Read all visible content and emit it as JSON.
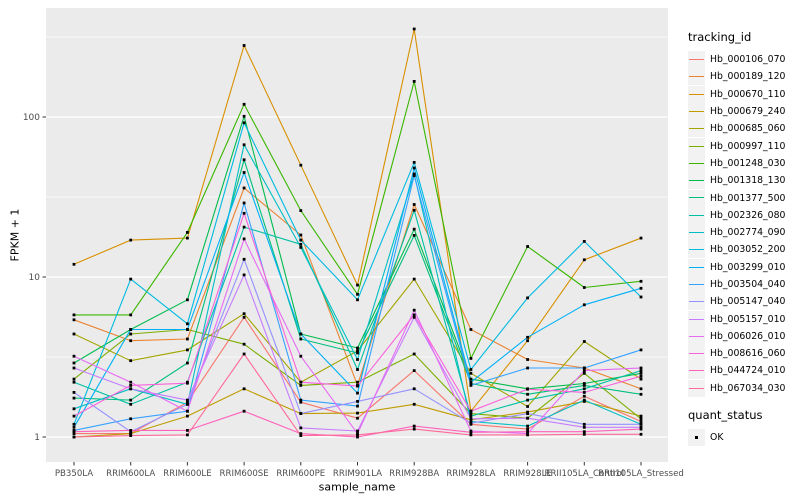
{
  "figure": {
    "background": "#FFFFFF",
    "panel_background": "#EBEBEB",
    "grid_color": "#FFFFFF",
    "axis_text_color": "#4D4D4D",
    "tick_color": "#333333",
    "point_color": "#000000",
    "legend_key_background": "#F2F2F2"
  },
  "chart_data": {
    "type": "line",
    "title": "",
    "xlabel": "sample_name",
    "ylabel": "FPKM + 1",
    "y_scale": "log10",
    "y_ticks": [
      1,
      10,
      100
    ],
    "y_minor_ticks": [
      3.1623,
      31.623,
      316.23
    ],
    "ylim": [
      0.69,
      460
    ],
    "grid": true,
    "legend_position": "right",
    "point_shape": "square",
    "categories": [
      "PB350LA",
      "RRIM600LA",
      "RRIM600LE",
      "RRIM600SE",
      "RRIM600PE",
      "RRIM901LA",
      "RRIM928BA",
      "RRIM928LA",
      "RRIM928LE",
      "RRII105LA_Control",
      "RRII105LA_Stressed"
    ],
    "series": [
      {
        "name": "Hb_000106_070",
        "color": "#F8766D",
        "values": [
          1.05,
          1.05,
          1.65,
          5.6,
          1.65,
          1.31,
          2.6,
          1.2,
          1.12,
          1.8,
          1.25
        ]
      },
      {
        "name": "Hb_000189_120",
        "color": "#EA8331",
        "values": [
          5.4,
          4.0,
          4.1,
          36,
          18.3,
          2.1,
          28.4,
          4.7,
          3.05,
          2.7,
          2.0
        ]
      },
      {
        "name": "Hb_000670_110",
        "color": "#D89000",
        "values": [
          12,
          17,
          17.5,
          280,
          50,
          8.9,
          355,
          1.45,
          4.0,
          12.8,
          17.5
        ]
      },
      {
        "name": "Hb_000679_240",
        "color": "#C09B00",
        "values": [
          1.0,
          1.05,
          1.35,
          2.0,
          1.4,
          1.41,
          1.6,
          1.28,
          1.43,
          1.67,
          1.35
        ]
      },
      {
        "name": "Hb_000685_060",
        "color": "#A3A500",
        "values": [
          4.4,
          3.0,
          3.5,
          5.9,
          2.2,
          3.45,
          9.7,
          2.5,
          1.55,
          3.95,
          2.3
        ]
      },
      {
        "name": "Hb_000997_110",
        "color": "#7CAE00",
        "values": [
          2.3,
          4.4,
          4.7,
          3.8,
          2.1,
          2.2,
          3.3,
          1.4,
          1.31,
          2.5,
          1.3
        ]
      },
      {
        "name": "Hb_001248_030",
        "color": "#39B600",
        "values": [
          5.8,
          5.8,
          19,
          120,
          26,
          7.8,
          167,
          3.1,
          15.5,
          8.6,
          9.4
        ]
      },
      {
        "name": "Hb_001318_130",
        "color": "#00BB4E",
        "values": [
          2.9,
          4.7,
          7.2,
          101,
          4.4,
          3.6,
          19.9,
          2.3,
          2.0,
          2.16,
          2.5
        ]
      },
      {
        "name": "Hb_001377_500",
        "color": "#00BF7D",
        "values": [
          1.75,
          1.7,
          2.9,
          54,
          4.1,
          3.35,
          18.2,
          2.16,
          1.85,
          2.1,
          1.85
        ]
      },
      {
        "name": "Hb_002326_080",
        "color": "#00C1A3",
        "values": [
          2.2,
          1.6,
          2.2,
          20.5,
          16,
          2.64,
          26.1,
          1.35,
          1.7,
          2.0,
          2.6
        ]
      },
      {
        "name": "Hb_002774_090",
        "color": "#00BFC4",
        "values": [
          1.5,
          2.0,
          1.6,
          67,
          15.3,
          3.05,
          44,
          1.25,
          1.17,
          1.7,
          1.2
        ]
      },
      {
        "name": "Hb_003052_200",
        "color": "#00BAE0",
        "values": [
          1.2,
          9.7,
          5.1,
          92,
          17,
          7.2,
          52,
          2.64,
          7.4,
          16.7,
          7.5
        ]
      },
      {
        "name": "Hb_003299_010",
        "color": "#00B0F6",
        "values": [
          1.15,
          4.7,
          4.7,
          45,
          4.4,
          1.88,
          48,
          2.2,
          4.2,
          6.7,
          8.5
        ]
      },
      {
        "name": "Hb_003504_040",
        "color": "#35A2FF",
        "values": [
          1.1,
          1.3,
          1.45,
          29,
          1.7,
          1.56,
          43,
          2.1,
          2.7,
          2.7,
          3.5
        ]
      },
      {
        "name": "Hb_005147_040",
        "color": "#9590FF",
        "values": [
          1.9,
          1.08,
          1.6,
          12.9,
          1.4,
          1.67,
          2.0,
          1.22,
          1.4,
          1.2,
          1.2
        ]
      },
      {
        "name": "Hb_005157_010",
        "color": "#C77CFF",
        "values": [
          2.7,
          2.0,
          1.7,
          10.3,
          1.14,
          1.09,
          5.6,
          1.3,
          1.31,
          1.15,
          1.15
        ]
      },
      {
        "name": "Hb_006026_010",
        "color": "#E76BF3",
        "values": [
          3.2,
          2.2,
          1.45,
          17.3,
          3.2,
          1.05,
          6.2,
          1.09,
          1.05,
          2.6,
          2.7
        ]
      },
      {
        "name": "Hb_008616_060",
        "color": "#FA62DB",
        "values": [
          1.35,
          2.1,
          2.17,
          25,
          2.2,
          2.08,
          5.8,
          1.45,
          1.99,
          1.9,
          2.4
        ]
      },
      {
        "name": "Hb_044724_010",
        "color": "#FF62BC",
        "values": [
          1.08,
          1.1,
          1.1,
          1.45,
          1.05,
          1.0,
          1.17,
          1.07,
          1.08,
          1.08,
          1.12
        ]
      },
      {
        "name": "Hb_067034_030",
        "color": "#FF6A98",
        "values": [
          1.0,
          1.02,
          1.03,
          3.3,
          1.02,
          1.03,
          1.12,
          1.03,
          1.03,
          1.04,
          1.04
        ]
      }
    ],
    "legends": {
      "tracking": {
        "title": "tracking_id"
      },
      "quant": {
        "title": "quant_status",
        "items": [
          "OK"
        ]
      }
    }
  }
}
